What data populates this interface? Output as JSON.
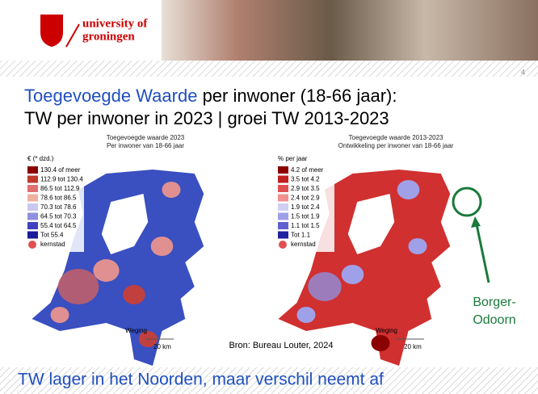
{
  "header": {
    "logo_line1": "university of",
    "logo_line2": "groningen",
    "page_number": "4"
  },
  "title": {
    "highlight": "Toegevoegde Waarde",
    "rest": " per inwoner (18-66 jaar):",
    "line2": "TW per inwoner in 2023  | groei TW 2013-2023"
  },
  "maps": [
    {
      "title": "Toegevoegde waarde 2023",
      "subtitle": "Per inwoner van 18-66 jaar",
      "legend_unit": "€ (* dzd.)",
      "legend": [
        "130.4 of meer",
        "112.9 tot 130.4",
        "86.5 tot 112.9",
        "78.6 tot 86.5",
        "70.3 tot 78.6",
        "64.5 tot 70.3",
        "55.4 tot 64.5",
        "Tot 55.4"
      ],
      "kernstad": "kernstad",
      "scale_label": "Weging",
      "scale_km": "20 km"
    },
    {
      "title": "Toegevoegde waarde 2013-2023",
      "subtitle": "Ontwikkeling per inwoner van 18-66 jaar",
      "legend_unit": "% per jaar",
      "legend": [
        "4.2 of meer",
        "3.5 tot 4.2",
        "2.9 tot 3.5",
        "2.4 tot 2.9",
        "1.9 tot 2.4",
        "1.5 tot 1.9",
        "1.1 tot 1.5",
        "Tot 1.1"
      ],
      "kernstad": "kernstad",
      "scale_label": "Weging",
      "scale_km": "20 km"
    }
  ],
  "annotation": {
    "line1": "Borger-",
    "line2": "Odoorn"
  },
  "source": "Bron: Bureau Louter, 2024",
  "conclusion": "TW lager in het Noorden, maar verschil neemt af"
}
